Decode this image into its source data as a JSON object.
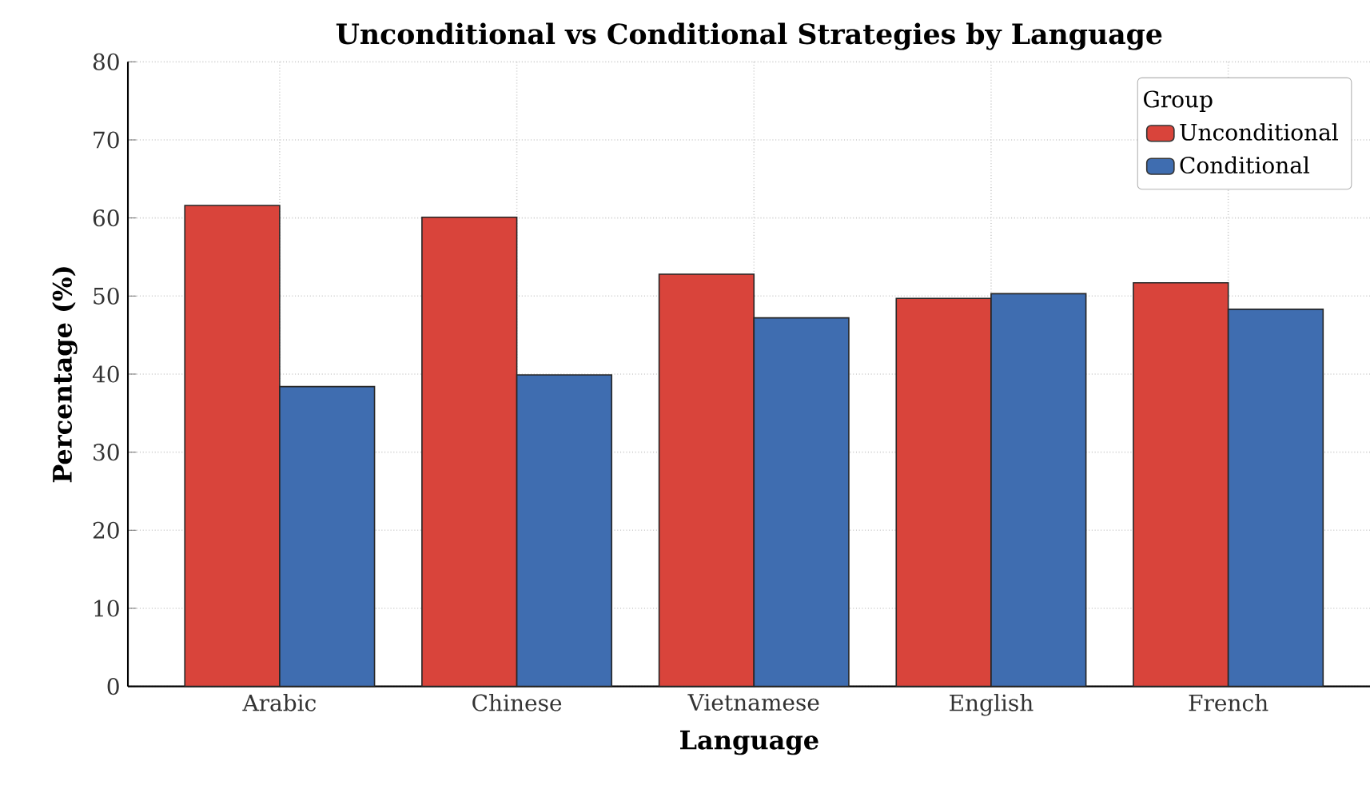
{
  "chart_data": {
    "type": "bar",
    "title": "Unconditional vs Conditional Strategies by Language",
    "xlabel": "Language",
    "ylabel": "Percentage (%)",
    "legend_title": "Group",
    "categories": [
      "Arabic",
      "Chinese",
      "Vietnamese",
      "English",
      "French"
    ],
    "series": [
      {
        "name": "Unconditional",
        "color": "#d9443b",
        "values": [
          61.6,
          60.1,
          52.8,
          49.7,
          51.7
        ]
      },
      {
        "name": "Conditional",
        "color": "#3f6db0",
        "values": [
          38.4,
          39.9,
          47.2,
          50.3,
          48.3
        ]
      }
    ],
    "ylim": [
      0,
      80
    ],
    "yticks": [
      0,
      10,
      20,
      30,
      40,
      50,
      60,
      70,
      80
    ],
    "grid": true,
    "legend": "top right"
  }
}
